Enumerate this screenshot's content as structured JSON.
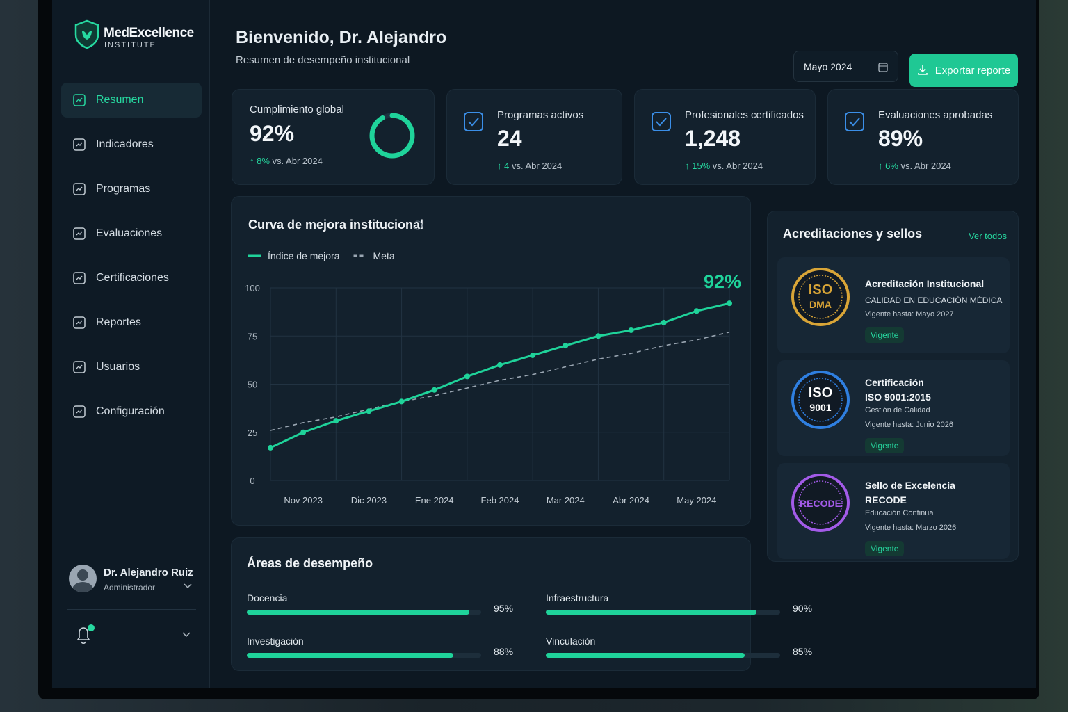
{
  "brand": {
    "name": "MedExcellence",
    "sub": "INSTITUTE"
  },
  "nav": [
    "Resumen",
    "Indicadores",
    "Programas",
    "Evaluaciones",
    "Certificaciones",
    "Reportes",
    "Usuarios",
    "Configuración"
  ],
  "user": {
    "name": "Dr. Alejandro Ruiz",
    "role": "Administrador"
  },
  "header": {
    "title": "Bienvenido, Dr. Alejandro",
    "subtitle": "Resumen de desempeño institucional",
    "period": "Mayo 2024",
    "export": "Exportar reporte"
  },
  "kpis": [
    {
      "label": "Cumplimiento global",
      "value": 92,
      "value_label": "92%",
      "delta": "8%",
      "compare": "vs. Abr 2024"
    },
    {
      "label": "Programas activos",
      "value_label": "24",
      "delta": "4",
      "compare": "vs. Abr 2024"
    },
    {
      "label": "Profesionales certificados",
      "value_label": "1,248",
      "delta": "15%",
      "compare": "vs. Abr 2024"
    },
    {
      "label": "Evaluaciones aprobadas",
      "value_label": "89%",
      "delta": "6%",
      "compare": "vs. Abr 2024"
    }
  ],
  "chart_data": {
    "type": "line",
    "title": "Curva de mejora institucional",
    "annotation": "92%",
    "categories": [
      null,
      "Nov 2023",
      null,
      "Dic 2023",
      null,
      "Ene 2024",
      null,
      "Feb 2024",
      null,
      "Mar 2024",
      null,
      "Abr 2024",
      null,
      "May 2024",
      null
    ],
    "series": [
      {
        "name": "Índice de mejora",
        "color": "#1fd39a",
        "values": [
          17,
          25,
          31,
          36,
          41,
          47,
          54,
          60,
          65,
          70,
          75,
          78,
          82,
          88,
          92
        ]
      },
      {
        "name": "Meta",
        "color": "#9aa6b2",
        "dashed": true,
        "values": [
          26,
          30,
          33,
          37,
          41,
          44,
          48,
          52,
          55,
          59,
          63,
          66,
          70,
          73,
          77
        ]
      }
    ],
    "ylim": [
      0,
      100
    ],
    "yticks": [
      0,
      25,
      50,
      75,
      100
    ],
    "grid": true
  },
  "areas": {
    "title": "Áreas de desempeño",
    "items": [
      {
        "name": "Docencia",
        "value": 95,
        "value_label": "95%"
      },
      {
        "name": "Infraestructura",
        "value": 90,
        "value_label": "90%"
      },
      {
        "name": "Investigación",
        "value": 88,
        "value_label": "88%"
      },
      {
        "name": "Vinculación",
        "value": 85,
        "value_label": "85%"
      }
    ]
  },
  "accreditations": {
    "title": "Acreditaciones y sellos",
    "link": "Ver todos",
    "items": [
      {
        "badge": [
          "ISO",
          "DMA"
        ],
        "color": "#d9a537",
        "title": "Acreditación Institucional",
        "subtitle": "CALIDAD EN EDUCACIÓN MÉDICA",
        "valid": "Vigente hasta: Mayo 2027",
        "status": "Vigente"
      },
      {
        "badge": [
          "ISO",
          "9001"
        ],
        "color": "#2f7fe0",
        "title": "Certificación",
        "subtitle": "ISO 9001:2015",
        "detail": "Gestión de Calidad",
        "valid": "Vigente hasta: Junio 2026",
        "status": "Vigente"
      },
      {
        "badge": [
          "RECODE"
        ],
        "color": "#a35be8",
        "title": "Sello de Excelencia",
        "subtitle": "RECODE",
        "detail": "Educación Continua",
        "valid": "Vigente hasta: Marzo 2026",
        "status": "Vigente"
      }
    ]
  }
}
